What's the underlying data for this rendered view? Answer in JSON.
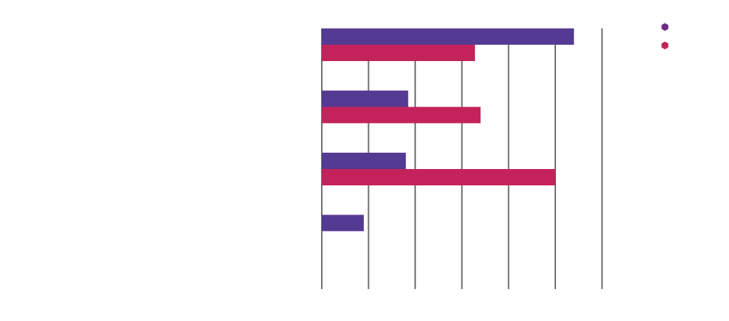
{
  "chart_data": {
    "type": "bar",
    "orientation": "horizontal",
    "categories": [
      "",
      "",
      "",
      ""
    ],
    "series": [
      {
        "color": "#553a94",
        "values": [
          5.4,
          1.85,
          1.8,
          0.9
        ]
      },
      {
        "color": "#c3235a",
        "values": [
          3.28,
          3.4,
          5.0,
          null
        ]
      }
    ],
    "xlim": [
      0,
      6
    ],
    "x_gridlines": [
      0,
      1,
      2,
      3,
      4,
      5,
      6
    ],
    "grid": true,
    "legend": {
      "position": "top-right",
      "marker": "hexagon",
      "marker_colors": [
        "#6d2b86",
        "#c3235a"
      ]
    }
  }
}
